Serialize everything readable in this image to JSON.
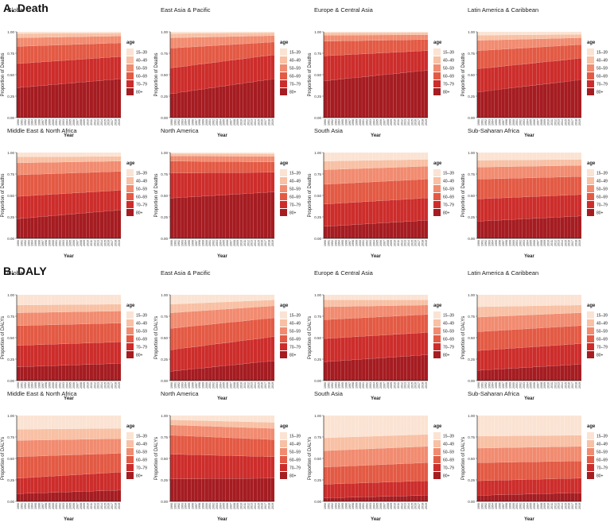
{
  "sections": [
    {
      "title": "A. Death",
      "ylabel": "Proportion of Deaths"
    },
    {
      "title": "B. DALY",
      "ylabel": "Proportion of DALYs"
    }
  ],
  "legend": {
    "title": "age",
    "groups": [
      "15–39",
      "40–49",
      "50–59",
      "60–69",
      "70–79",
      "80+"
    ],
    "colors": [
      "#fbe3d3",
      "#f8c0a4",
      "#f18b70",
      "#e35a44",
      "#cc2d2b",
      "#a51c21"
    ]
  },
  "xaxis": {
    "label": "Year",
    "start_year": 1990,
    "end_year": 2019
  },
  "yaxis": {
    "ticks": [
      "0.00",
      "0.25",
      "0.50",
      "0.75",
      "1.00"
    ]
  },
  "chart_data": [
    {
      "section": 0,
      "type": "area",
      "title": "Global",
      "xlabel": "Year",
      "ylabel": "Proportion of Deaths",
      "ylim": [
        0,
        1
      ],
      "x": [
        1990,
        2019
      ],
      "stacked_boundaries_start": [
        0.35,
        0.63,
        0.83,
        0.93,
        0.98,
        1.0
      ],
      "stacked_boundaries_end": [
        0.45,
        0.71,
        0.87,
        0.95,
        0.985,
        1.0
      ]
    },
    {
      "section": 0,
      "type": "area",
      "title": "East Asia & Pacific",
      "xlabel": "Year",
      "ylabel": "Proportion of Deaths",
      "ylim": [
        0,
        1
      ],
      "x": [
        1990,
        2019
      ],
      "stacked_boundaries_start": [
        0.28,
        0.58,
        0.81,
        0.93,
        0.98,
        1.0
      ],
      "stacked_boundaries_end": [
        0.45,
        0.73,
        0.88,
        0.955,
        0.99,
        1.0
      ]
    },
    {
      "section": 0,
      "type": "area",
      "title": "Europe & Central Asia",
      "xlabel": "Year",
      "ylabel": "Proportion of Deaths",
      "ylim": [
        0,
        1
      ],
      "x": [
        1990,
        2019
      ],
      "stacked_boundaries_start": [
        0.43,
        0.72,
        0.89,
        0.96,
        0.99,
        1.0
      ],
      "stacked_boundaries_end": [
        0.55,
        0.78,
        0.91,
        0.965,
        0.99,
        1.0
      ]
    },
    {
      "section": 0,
      "type": "area",
      "title": "Latin America & Caribbean",
      "xlabel": "Year",
      "ylabel": "Proportion of Deaths",
      "ylim": [
        0,
        1
      ],
      "x": [
        1990,
        2019
      ],
      "stacked_boundaries_start": [
        0.3,
        0.57,
        0.78,
        0.9,
        0.96,
        1.0
      ],
      "stacked_boundaries_end": [
        0.44,
        0.69,
        0.85,
        0.93,
        0.97,
        1.0
      ]
    },
    {
      "section": 0,
      "type": "area",
      "title": "Middle East & North Africa",
      "xlabel": "Year",
      "ylabel": "Proportion of Deaths",
      "ylim": [
        0,
        1
      ],
      "x": [
        1990,
        2019
      ],
      "stacked_boundaries_start": [
        0.23,
        0.49,
        0.74,
        0.88,
        0.95,
        1.0
      ],
      "stacked_boundaries_end": [
        0.33,
        0.56,
        0.78,
        0.9,
        0.955,
        1.0
      ]
    },
    {
      "section": 0,
      "type": "area",
      "title": "North America",
      "xlabel": "Year",
      "ylabel": "Proportion of Deaths",
      "ylim": [
        0,
        1
      ],
      "x": [
        1990,
        2019
      ],
      "stacked_boundaries_start": [
        0.47,
        0.76,
        0.9,
        0.96,
        0.99,
        1.0
      ],
      "stacked_boundaries_end": [
        0.54,
        0.77,
        0.89,
        0.955,
        0.985,
        1.0
      ]
    },
    {
      "section": 0,
      "type": "area",
      "title": "South Asia",
      "xlabel": "Year",
      "ylabel": "Proportion of Deaths",
      "ylim": [
        0,
        1
      ],
      "x": [
        1990,
        2019
      ],
      "stacked_boundaries_start": [
        0.14,
        0.4,
        0.63,
        0.8,
        0.9,
        1.0
      ],
      "stacked_boundaries_end": [
        0.21,
        0.47,
        0.69,
        0.84,
        0.92,
        1.0
      ]
    },
    {
      "section": 0,
      "type": "area",
      "title": "Sub-Saharan Africa",
      "xlabel": "Year",
      "ylabel": "Proportion of Deaths",
      "ylim": [
        0,
        1
      ],
      "x": [
        1990,
        2019
      ],
      "stacked_boundaries_start": [
        0.2,
        0.46,
        0.69,
        0.83,
        0.91,
        1.0
      ],
      "stacked_boundaries_end": [
        0.26,
        0.51,
        0.72,
        0.85,
        0.92,
        1.0
      ]
    },
    {
      "section": 1,
      "type": "area",
      "title": "Global",
      "xlabel": "Year",
      "ylabel": "Proportion of DALYs",
      "ylim": [
        0,
        1
      ],
      "x": [
        1990,
        2019
      ],
      "stacked_boundaries_start": [
        0.16,
        0.41,
        0.64,
        0.79,
        0.88,
        1.0
      ],
      "stacked_boundaries_end": [
        0.2,
        0.45,
        0.67,
        0.81,
        0.89,
        1.0
      ]
    },
    {
      "section": 1,
      "type": "area",
      "title": "East Asia & Pacific",
      "xlabel": "Year",
      "ylabel": "Proportion of DALYs",
      "ylim": [
        0,
        1
      ],
      "x": [
        1990,
        2019
      ],
      "stacked_boundaries_start": [
        0.11,
        0.36,
        0.61,
        0.79,
        0.89,
        1.0
      ],
      "stacked_boundaries_end": [
        0.23,
        0.51,
        0.73,
        0.87,
        0.94,
        1.0
      ]
    },
    {
      "section": 1,
      "type": "area",
      "title": "Europe & Central Asia",
      "xlabel": "Year",
      "ylabel": "Proportion of DALYs",
      "ylim": [
        0,
        1
      ],
      "x": [
        1990,
        2019
      ],
      "stacked_boundaries_start": [
        0.22,
        0.49,
        0.71,
        0.86,
        0.94,
        1.0
      ],
      "stacked_boundaries_end": [
        0.3,
        0.56,
        0.77,
        0.88,
        0.94,
        1.0
      ]
    },
    {
      "section": 1,
      "type": "area",
      "title": "Latin America & Caribbean",
      "xlabel": "Year",
      "ylabel": "Proportion of DALYs",
      "ylim": [
        0,
        1
      ],
      "x": [
        1990,
        2019
      ],
      "stacked_boundaries_start": [
        0.12,
        0.35,
        0.57,
        0.74,
        0.86,
        1.0
      ],
      "stacked_boundaries_end": [
        0.19,
        0.43,
        0.64,
        0.79,
        0.88,
        1.0
      ]
    },
    {
      "section": 1,
      "type": "area",
      "title": "Middle East & North Africa",
      "xlabel": "Year",
      "ylabel": "Proportion of DALYs",
      "ylim": [
        0,
        1
      ],
      "x": [
        1990,
        2019
      ],
      "stacked_boundaries_start": [
        0.09,
        0.27,
        0.52,
        0.71,
        0.84,
        1.0
      ],
      "stacked_boundaries_end": [
        0.13,
        0.34,
        0.56,
        0.73,
        0.85,
        1.0
      ]
    },
    {
      "section": 1,
      "type": "area",
      "title": "North America",
      "xlabel": "Year",
      "ylabel": "Proportion of DALYs",
      "ylim": [
        0,
        1
      ],
      "x": [
        1990,
        2019
      ],
      "stacked_boundaries_start": [
        0.26,
        0.55,
        0.77,
        0.89,
        0.95,
        1.0
      ],
      "stacked_boundaries_end": [
        0.27,
        0.52,
        0.72,
        0.85,
        0.92,
        1.0
      ]
    },
    {
      "section": 1,
      "type": "area",
      "title": "South Asia",
      "xlabel": "Year",
      "ylabel": "Proportion of DALYs",
      "ylim": [
        0,
        1
      ],
      "x": [
        1990,
        2019
      ],
      "stacked_boundaries_start": [
        0.04,
        0.2,
        0.4,
        0.59,
        0.74,
        1.0
      ],
      "stacked_boundaries_end": [
        0.07,
        0.24,
        0.45,
        0.64,
        0.78,
        1.0
      ]
    },
    {
      "section": 1,
      "type": "area",
      "title": "Sub-Saharan Africa",
      "xlabel": "Year",
      "ylabel": "Proportion of DALYs",
      "ylim": [
        0,
        1
      ],
      "x": [
        1990,
        2019
      ],
      "stacked_boundaries_start": [
        0.07,
        0.24,
        0.45,
        0.62,
        0.76,
        1.0
      ],
      "stacked_boundaries_end": [
        0.1,
        0.27,
        0.47,
        0.64,
        0.77,
        1.0
      ]
    }
  ]
}
